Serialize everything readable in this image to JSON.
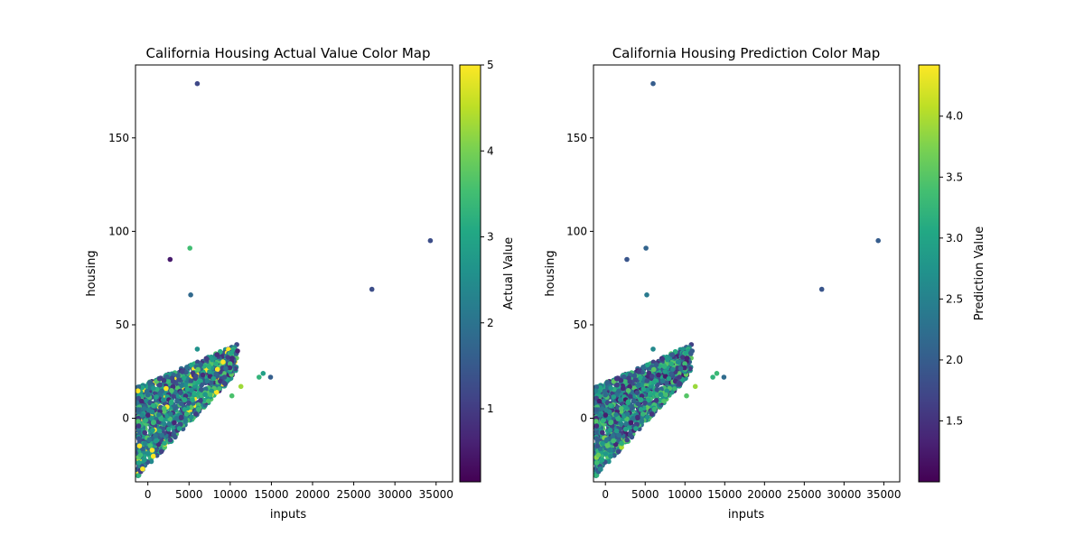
{
  "chart_data": [
    {
      "type": "scatter",
      "title": "California Housing Actual Value Color Map",
      "xlabel": "inputs",
      "ylabel": "housing",
      "colorbar_label": "Actual Value",
      "colormap": "viridis",
      "xlim": [
        -1500,
        37000
      ],
      "ylim": [
        -34,
        189
      ],
      "xticks": [
        0,
        5000,
        10000,
        15000,
        20000,
        25000,
        30000,
        35000
      ],
      "yticks": [
        0,
        50,
        100,
        150
      ],
      "color_range": [
        0.15,
        5.0
      ],
      "colorbar_ticks": [
        1,
        2,
        3,
        4,
        5
      ],
      "outliers": [
        {
          "x": 6000,
          "y": 179,
          "c": 1.2
        },
        {
          "x": 34300,
          "y": 95,
          "c": 1.3
        },
        {
          "x": 5100,
          "y": 91,
          "c": 3.5
        },
        {
          "x": 2700,
          "y": 85,
          "c": 0.5
        },
        {
          "x": 27200,
          "y": 69,
          "c": 1.3
        },
        {
          "x": 5200,
          "y": 66,
          "c": 1.8
        },
        {
          "x": 6000,
          "y": 37,
          "c": 2.6
        },
        {
          "x": 8400,
          "y": 34,
          "c": 0.8
        },
        {
          "x": 10900,
          "y": 36,
          "c": 0.6
        },
        {
          "x": 14000,
          "y": 24,
          "c": 2.9
        },
        {
          "x": 14900,
          "y": 22,
          "c": 1.6
        },
        {
          "x": 13500,
          "y": 22,
          "c": 3.3
        },
        {
          "x": 11300,
          "y": 17,
          "c": 4.3
        },
        {
          "x": 10200,
          "y": 12,
          "c": 3.6
        },
        {
          "x": 9300,
          "y": 22,
          "c": 1.4
        },
        {
          "x": 7200,
          "y": 20,
          "c": 2.2
        }
      ]
    },
    {
      "type": "scatter",
      "title": "California Housing Prediction Color Map",
      "xlabel": "inputs",
      "ylabel": "housing",
      "colorbar_label": "Prediction Value",
      "colormap": "viridis",
      "xlim": [
        -1500,
        37000
      ],
      "ylim": [
        -34,
        189
      ],
      "xticks": [
        0,
        5000,
        10000,
        15000,
        20000,
        25000,
        30000,
        35000
      ],
      "yticks": [
        0,
        50,
        100,
        150
      ],
      "color_range": [
        1.0,
        4.42
      ],
      "colorbar_ticks": [
        1.5,
        2.0,
        2.5,
        3.0,
        3.5,
        4.0
      ],
      "outliers": [
        {
          "x": 6000,
          "y": 179,
          "c": 2.0
        },
        {
          "x": 34300,
          "y": 95,
          "c": 2.0
        },
        {
          "x": 5100,
          "y": 91,
          "c": 2.1
        },
        {
          "x": 2700,
          "y": 85,
          "c": 1.9
        },
        {
          "x": 27200,
          "y": 69,
          "c": 1.9
        },
        {
          "x": 5200,
          "y": 66,
          "c": 2.4
        },
        {
          "x": 6000,
          "y": 37,
          "c": 2.6
        },
        {
          "x": 8400,
          "y": 34,
          "c": 2.0
        },
        {
          "x": 10900,
          "y": 36,
          "c": 2.0
        },
        {
          "x": 14000,
          "y": 24,
          "c": 3.3
        },
        {
          "x": 14900,
          "y": 22,
          "c": 2.2
        },
        {
          "x": 13500,
          "y": 22,
          "c": 3.2
        },
        {
          "x": 11300,
          "y": 17,
          "c": 3.9
        },
        {
          "x": 10200,
          "y": 12,
          "c": 3.5
        },
        {
          "x": 9300,
          "y": 22,
          "c": 1.6
        },
        {
          "x": 7200,
          "y": 20,
          "c": 2.4
        }
      ]
    }
  ]
}
